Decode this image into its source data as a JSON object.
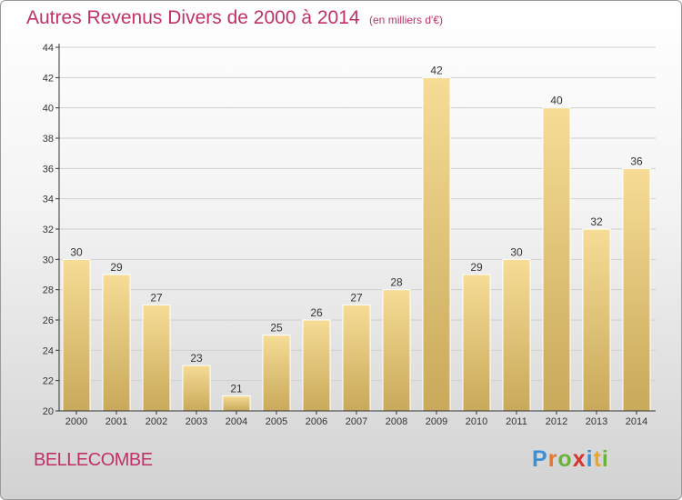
{
  "title": {
    "main": "Autres Revenus Divers de 2000 à 2014",
    "sub": "(en milliers d'€)"
  },
  "commune": "BELLECOMBE",
  "logo": {
    "text": "Proxiti",
    "letters": [
      {
        "char": "P",
        "color": "#3a8fd6"
      },
      {
        "char": "r",
        "color": "#e8762a"
      },
      {
        "char": "o",
        "color": "#6ab23a"
      },
      {
        "char": "x",
        "color": "#d8322e"
      },
      {
        "char": "i",
        "color": "#3a8fd6"
      },
      {
        "char": "t",
        "color": "#e8a72a"
      },
      {
        "char": "i",
        "color": "#6ab23a"
      }
    ]
  },
  "colors": {
    "title": "#c0316a",
    "bar_light": "#f6dc96",
    "bar_dark": "#c9a95a",
    "axis": "#333333",
    "grid": "#cfcfcf"
  },
  "chart_data": {
    "type": "bar",
    "categories": [
      "2000",
      "2001",
      "2002",
      "2003",
      "2004",
      "2005",
      "2006",
      "2007",
      "2008",
      "2009",
      "2010",
      "2011",
      "2012",
      "2013",
      "2014"
    ],
    "values": [
      30,
      29,
      27,
      23,
      21,
      25,
      26,
      27,
      28,
      42,
      29,
      30,
      40,
      32,
      36
    ],
    "ylim": [
      20,
      44
    ],
    "yticks": [
      20,
      22,
      24,
      26,
      28,
      30,
      32,
      34,
      36,
      38,
      40,
      42,
      44
    ],
    "grid": true,
    "data_labels": true
  }
}
